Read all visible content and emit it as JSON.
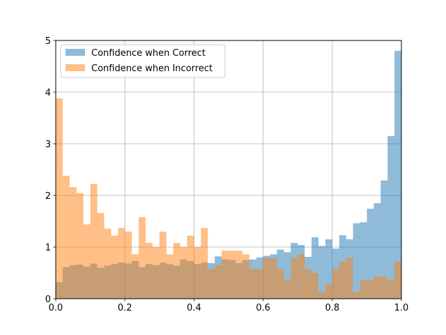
{
  "chart_data": {
    "type": "histogram",
    "title": "",
    "xlabel": "",
    "ylabel": "",
    "xlim": [
      0,
      1
    ],
    "ylim": [
      0,
      5
    ],
    "grid": true,
    "legend_position": "upper-left",
    "x_ticks": [
      "0.0",
      "0.2",
      "0.4",
      "0.6",
      "0.8",
      "1.0"
    ],
    "y_ticks": [
      "0",
      "1",
      "2",
      "3",
      "4",
      "5"
    ],
    "bin_width": 0.02,
    "bin_starts": [
      0.0,
      0.02,
      0.04,
      0.06,
      0.08,
      0.1,
      0.12,
      0.14,
      0.16,
      0.18,
      0.2,
      0.22,
      0.24,
      0.26,
      0.28,
      0.3,
      0.32,
      0.34,
      0.36,
      0.38,
      0.4,
      0.42,
      0.44,
      0.46,
      0.48,
      0.5,
      0.52,
      0.54,
      0.56,
      0.58,
      0.6,
      0.62,
      0.64,
      0.66,
      0.68,
      0.7,
      0.72,
      0.74,
      0.76,
      0.78,
      0.8,
      0.82,
      0.84,
      0.86,
      0.88,
      0.9,
      0.92,
      0.94,
      0.96,
      0.98
    ],
    "series": [
      {
        "name": "Confidence when Correct",
        "color": "#1f77b4",
        "alpha": 0.5,
        "values": [
          0.32,
          0.61,
          0.65,
          0.66,
          0.62,
          0.68,
          0.6,
          0.64,
          0.67,
          0.7,
          0.68,
          0.73,
          0.61,
          0.67,
          0.65,
          0.7,
          0.67,
          0.64,
          0.76,
          0.73,
          0.67,
          0.7,
          0.69,
          0.82,
          0.76,
          0.75,
          0.69,
          0.75,
          0.76,
          0.8,
          0.83,
          0.86,
          0.95,
          0.9,
          1.08,
          1.04,
          0.81,
          1.19,
          1.02,
          1.15,
          0.97,
          1.23,
          1.15,
          1.46,
          1.48,
          1.74,
          1.85,
          2.29,
          3.15,
          4.8
        ]
      },
      {
        "name": "Confidence when Incorrect",
        "color": "#ff7f0e",
        "alpha": 0.5,
        "values": [
          3.88,
          2.38,
          2.16,
          2.04,
          1.44,
          2.22,
          1.66,
          1.36,
          1.22,
          1.37,
          1.3,
          0.86,
          1.58,
          1.08,
          1.0,
          1.3,
          0.86,
          1.08,
          1.0,
          1.22,
          1.0,
          1.37,
          0.58,
          0.65,
          0.93,
          0.93,
          0.93,
          0.86,
          0.58,
          0.58,
          0.79,
          0.79,
          0.58,
          0.36,
          0.79,
          0.86,
          0.58,
          0.5,
          0.14,
          0.29,
          0.58,
          0.72,
          0.79,
          0.14,
          0.36,
          0.36,
          0.43,
          0.43,
          0.36,
          0.72
        ]
      }
    ]
  }
}
